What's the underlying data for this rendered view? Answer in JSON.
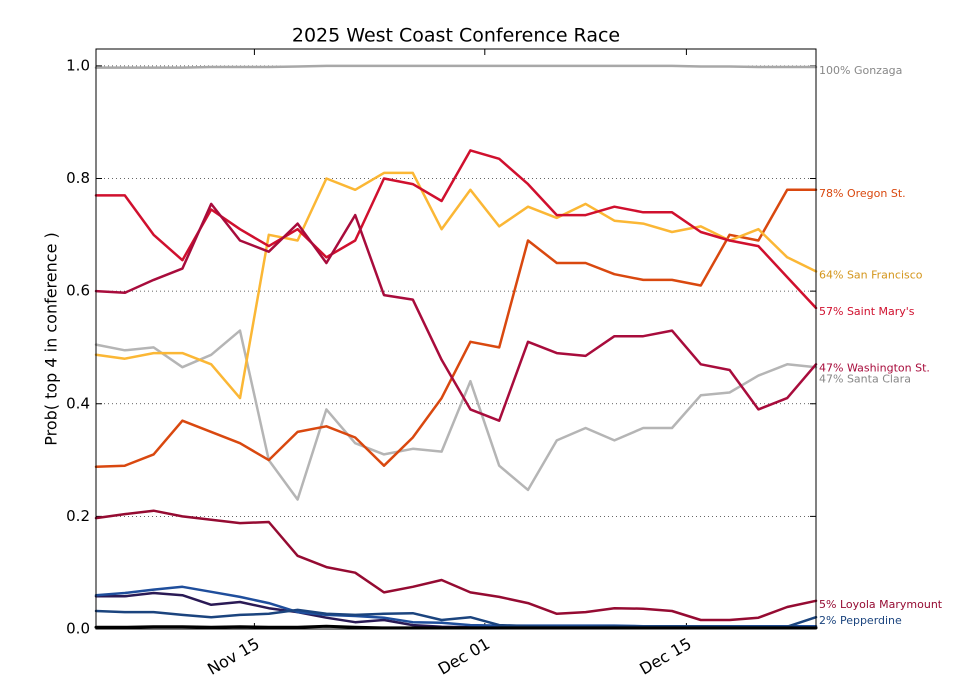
{
  "chart_data": {
    "type": "line",
    "title": "2025 West Coast Conference Race",
    "y_label": "Prob( top 4 in conference )",
    "x": [
      "Nov 04",
      "Nov 06",
      "Nov 08",
      "Nov 10",
      "Nov 12",
      "Nov 14",
      "Nov 16",
      "Nov 18",
      "Nov 20",
      "Nov 22",
      "Nov 24",
      "Nov 26",
      "Nov 28",
      "Nov 30",
      "Dec 02",
      "Dec 04",
      "Dec 06",
      "Dec 08",
      "Dec 10",
      "Dec 12",
      "Dec 14",
      "Dec 16",
      "Dec 18",
      "Dec 20",
      "Dec 22",
      "Dec 24"
    ],
    "xlim": [
      "Nov 04",
      "Dec 24"
    ],
    "xticks": [
      "Nov 15",
      "Dec 01",
      "Dec 15"
    ],
    "ylim": [
      0,
      1.03
    ],
    "yticks": [
      {
        "value": 0,
        "label": "0.0"
      },
      0.2,
      0.4,
      0.6,
      0.8,
      {
        "value": 1,
        "label": "1.0"
      }
    ],
    "grid": true,
    "series": [
      {
        "name": "Gonzaga",
        "end_label": "100% Gonzaga",
        "color": "#a8a8a8",
        "label_color": "#888888",
        "values": [
          0.997,
          0.997,
          0.997,
          0.997,
          0.998,
          0.998,
          0.998,
          0.999,
          1,
          1,
          1,
          1,
          1,
          1,
          1,
          1,
          1,
          1,
          1,
          1,
          1,
          0.999,
          0.999,
          0.998,
          0.998,
          0.998
        ]
      },
      {
        "name": "Santa Clara",
        "end_label": "47% Santa Clara",
        "color": "#b5b5b5",
        "label_color": "#888888",
        "values": [
          0.505,
          0.495,
          0.5,
          0.465,
          0.487,
          0.53,
          0.3,
          0.23,
          0.39,
          0.33,
          0.31,
          0.32,
          0.315,
          0.44,
          0.29,
          0.247,
          0.335,
          0.357,
          0.335,
          0.357,
          0.357,
          0.415,
          0.42,
          0.45,
          0.47,
          0.465
        ]
      },
      {
        "name": "Oregon St.",
        "end_label": "78% Oregon St.",
        "color": "#d9480f",
        "label_color": "#d9480f",
        "values": [
          0.288,
          0.29,
          0.31,
          0.37,
          0.35,
          0.33,
          0.3,
          0.35,
          0.36,
          0.34,
          0.29,
          0.34,
          0.41,
          0.51,
          0.5,
          0.69,
          0.65,
          0.65,
          0.63,
          0.62,
          0.62,
          0.61,
          0.7,
          0.69,
          0.78,
          0.78
        ]
      },
      {
        "name": "San Francisco",
        "end_label": "64% San Francisco",
        "color": "#fbb735",
        "label_color": "#d4961c",
        "values": [
          0.487,
          0.48,
          0.49,
          0.49,
          0.47,
          0.41,
          0.7,
          0.69,
          0.8,
          0.78,
          0.81,
          0.81,
          0.71,
          0.78,
          0.715,
          0.75,
          0.73,
          0.755,
          0.725,
          0.72,
          0.705,
          0.715,
          0.69,
          0.71,
          0.66,
          0.635
        ]
      },
      {
        "name": "Saint Mary's",
        "end_label": "57% Saint Mary's",
        "color": "#d0102e",
        "label_color": "#d0102e",
        "values": [
          0.77,
          0.77,
          0.7,
          0.655,
          0.745,
          0.71,
          0.68,
          0.71,
          0.66,
          0.69,
          0.8,
          0.79,
          0.76,
          0.85,
          0.835,
          0.79,
          0.735,
          0.735,
          0.75,
          0.74,
          0.74,
          0.705,
          0.69,
          0.68,
          0.625,
          0.57
        ]
      },
      {
        "name": "Washington St.",
        "end_label": "47% Washington St.",
        "color": "#a80c3c",
        "label_color": "#a80c3c",
        "values": [
          0.6,
          0.597,
          0.62,
          0.64,
          0.755,
          0.69,
          0.67,
          0.72,
          0.65,
          0.735,
          0.593,
          0.585,
          0.478,
          0.39,
          0.37,
          0.51,
          0.49,
          0.485,
          0.52,
          0.52,
          0.53,
          0.47,
          0.46,
          0.39,
          0.41,
          0.47
        ]
      },
      {
        "name": "Loyola Marymount",
        "end_label": "5% Loyola Marymount",
        "color": "#950b32",
        "label_color": "#950b32",
        "values": [
          0.197,
          0.204,
          0.21,
          0.2,
          0.194,
          0.188,
          0.19,
          0.13,
          0.11,
          0.1,
          0.065,
          0.075,
          0.087,
          0.065,
          0.057,
          0.046,
          0.027,
          0.03,
          0.037,
          0.036,
          0.032,
          0.016,
          0.016,
          0.02,
          0.039,
          0.05
        ]
      },
      {
        "color": "#2a1a55",
        "values": [
          0.058,
          0.058,
          0.064,
          0.06,
          0.043,
          0.048,
          0.037,
          0.03,
          0.02,
          0.012,
          0.016,
          0.007,
          0.004,
          0.003,
          0.003,
          0.003,
          0.003,
          0.003,
          0.003,
          0.003,
          0.003,
          0.003,
          0.003,
          0.003,
          0.003,
          0.003
        ]
      },
      {
        "color": "#1f4e9c",
        "values": [
          0.06,
          0.064,
          0.07,
          0.075,
          0.066,
          0.057,
          0.046,
          0.03,
          0.025,
          0.023,
          0.02,
          0.012,
          0.011,
          0.007,
          0.006,
          0.006,
          0.006,
          0.006,
          0.006,
          0.005,
          0.005,
          0.005,
          0.005,
          0.005,
          0.005,
          0.005
        ]
      },
      {
        "name": "Pepperdine",
        "end_label": "2% Pepperdine",
        "color": "#1b447e",
        "label_color": "#1b447e",
        "values": [
          0.032,
          0.03,
          0.03,
          0.025,
          0.021,
          0.025,
          0.027,
          0.034,
          0.027,
          0.025,
          0.027,
          0.028,
          0.016,
          0.021,
          0.007,
          0.005,
          0.004,
          0.004,
          0.005,
          0.005,
          0.005,
          0.005,
          0.004,
          0.004,
          0.004,
          0.021
        ]
      },
      {
        "color": "#000000",
        "values": [
          0.003,
          0.003,
          0.004,
          0.004,
          0.003,
          0.004,
          0.003,
          0.003,
          0.005,
          0.003,
          0.002,
          0.002,
          0.002,
          0.002,
          0.002,
          0.002,
          0.002,
          0.002,
          0.002,
          0.002,
          0.002,
          0.002,
          0.002,
          0.002,
          0.002,
          0.002
        ]
      }
    ]
  }
}
